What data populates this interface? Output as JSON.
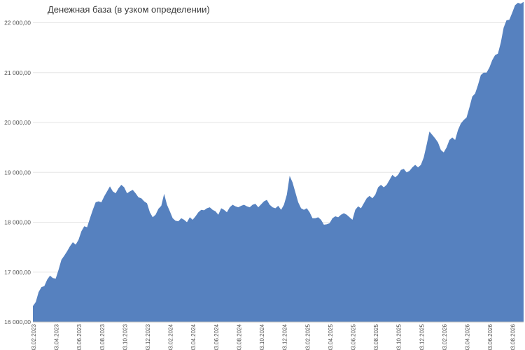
{
  "chart_data": {
    "type": "area",
    "title": "Денежная база (в узком определении)",
    "xlabel": "",
    "ylabel": "",
    "ylim": [
      16000,
      22400
    ],
    "grid": true,
    "legend": "none",
    "color": "#5681bf",
    "y_ticks": [
      {
        "value": 16000,
        "label": "16 000,00"
      },
      {
        "value": 17000,
        "label": "17 000,00"
      },
      {
        "value": 18000,
        "label": "18 000,00"
      },
      {
        "value": 19000,
        "label": "19 000,00"
      },
      {
        "value": 20000,
        "label": "20 000,00"
      },
      {
        "value": 21000,
        "label": "21 000,00"
      },
      {
        "value": 22000,
        "label": "22 000,00"
      }
    ],
    "x_ticks": [
      {
        "label": "03.02.2023",
        "index": 0
      },
      {
        "label": "03.04.2023",
        "index": 8
      },
      {
        "label": "03.06.2023",
        "index": 16
      },
      {
        "label": "03.08.2023",
        "index": 24
      },
      {
        "label": "03.10.2023",
        "index": 32
      },
      {
        "label": "03.12.2023",
        "index": 40
      },
      {
        "label": "03.02.2024",
        "index": 48
      },
      {
        "label": "03.04.2024",
        "index": 56
      },
      {
        "label": "03.06.2024",
        "index": 64
      },
      {
        "label": "03.08.2024",
        "index": 72
      },
      {
        "label": "03.10.2024",
        "index": 80
      },
      {
        "label": "03.12.2024",
        "index": 88
      },
      {
        "label": "03.02.2025",
        "index": 96
      },
      {
        "label": "03.04.2025",
        "index": 104
      },
      {
        "label": "03.06.2025",
        "index": 112
      },
      {
        "label": "03.08.2025",
        "index": 120
      },
      {
        "label": "03.10.2025",
        "index": 128
      },
      {
        "label": "03.12.2025",
        "index": 136
      },
      {
        "label": "03.02.2026",
        "index": 144
      },
      {
        "label": "03.04.2026",
        "index": 152
      },
      {
        "label": "03.06.2026",
        "index": 160
      },
      {
        "label": "03.08.2026",
        "index": 168
      }
    ],
    "series": [
      {
        "values": [
          16320,
          16400,
          16600,
          16700,
          16720,
          16850,
          16930,
          16880,
          16870,
          17050,
          17250,
          17330,
          17420,
          17520,
          17600,
          17550,
          17650,
          17820,
          17920,
          17900,
          18080,
          18250,
          18400,
          18420,
          18400,
          18520,
          18620,
          18720,
          18620,
          18580,
          18680,
          18750,
          18700,
          18580,
          18620,
          18650,
          18580,
          18500,
          18480,
          18420,
          18380,
          18200,
          18100,
          18150,
          18270,
          18330,
          18570,
          18350,
          18220,
          18080,
          18030,
          18020,
          18080,
          18050,
          18000,
          18100,
          18050,
          18120,
          18200,
          18250,
          18240,
          18280,
          18300,
          18250,
          18220,
          18150,
          18280,
          18250,
          18200,
          18300,
          18350,
          18320,
          18300,
          18330,
          18350,
          18320,
          18300,
          18350,
          18370,
          18300,
          18360,
          18420,
          18450,
          18350,
          18300,
          18280,
          18330,
          18250,
          18350,
          18550,
          18930,
          18800,
          18600,
          18400,
          18280,
          18250,
          18280,
          18200,
          18080,
          18080,
          18100,
          18050,
          17950,
          17960,
          17980,
          18080,
          18120,
          18100,
          18150,
          18180,
          18150,
          18100,
          18050,
          18250,
          18320,
          18280,
          18380,
          18480,
          18530,
          18480,
          18550,
          18700,
          18750,
          18700,
          18750,
          18850,
          18950,
          18900,
          18950,
          19050,
          19070,
          19000,
          19030,
          19100,
          19150,
          19100,
          19150,
          19300,
          19550,
          19820,
          19750,
          19680,
          19600,
          19450,
          19400,
          19500,
          19650,
          19700,
          19650,
          19850,
          19980,
          20050,
          20100,
          20300,
          20520,
          20580,
          20750,
          20950,
          21000,
          21000,
          21100,
          21250,
          21350,
          21380,
          21600,
          21900,
          22050,
          22060,
          22200,
          22350,
          22400,
          22380,
          22420
        ]
      }
    ]
  }
}
